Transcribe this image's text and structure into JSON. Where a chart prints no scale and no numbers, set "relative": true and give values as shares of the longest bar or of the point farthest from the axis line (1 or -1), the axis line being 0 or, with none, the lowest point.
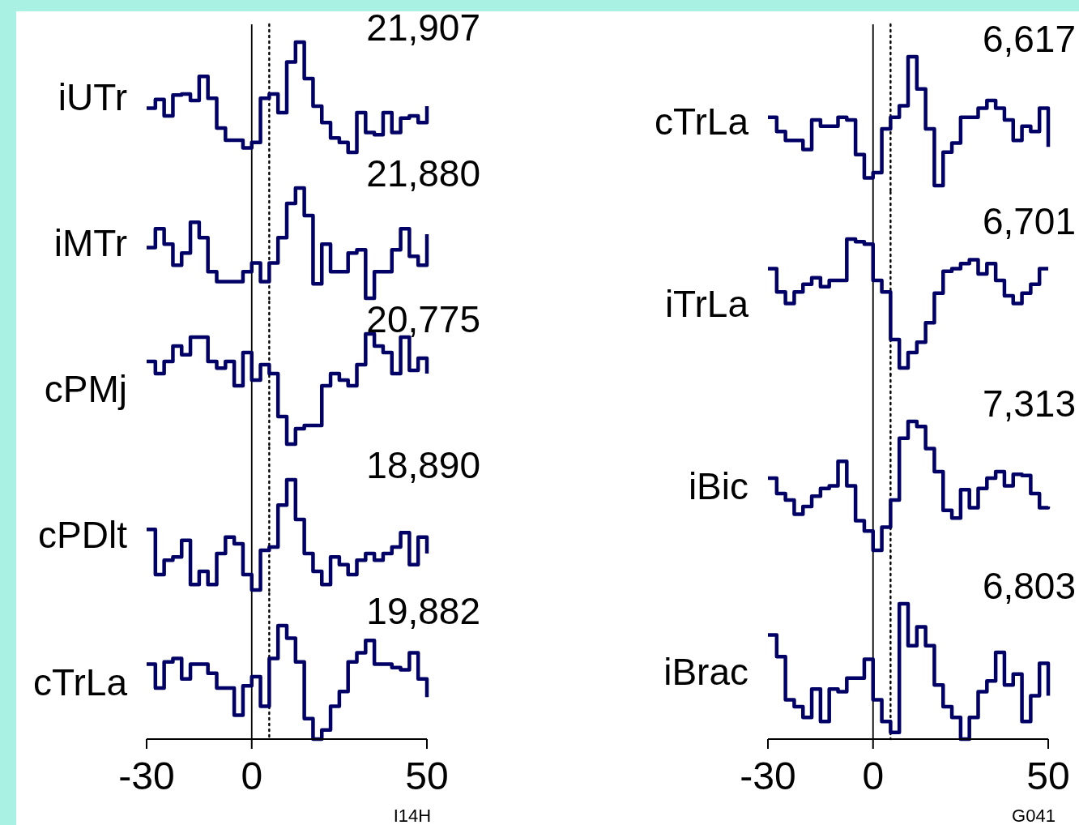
{
  "chart_data": [
    {
      "type": "step",
      "ylabel": "iUTr",
      "annotations": [
        "21,907"
      ],
      "relative": true,
      "xlim": [
        -30,
        50
      ],
      "tick_labels": false,
      "color": "#000066",
      "line_style": "solid",
      "ref_lines": [
        {
          "axis": "x",
          "value": 0,
          "color": "#000000",
          "line_style": "solid"
        },
        {
          "axis": "x",
          "value": 5,
          "color": "#000000",
          "line_style": "dotted"
        }
      ],
      "x": [
        -30,
        -27.5,
        -25,
        -22.5,
        -20,
        -17.5,
        -15,
        -12.5,
        -10,
        -7.5,
        -5,
        -2.5,
        0,
        2.5,
        5,
        7.5,
        10,
        12.5,
        15,
        17.5,
        20,
        22.5,
        25,
        27.5,
        30,
        32.5,
        35,
        37.5,
        40,
        42.5,
        45,
        47.5,
        50
      ],
      "values": [
        0.4,
        0.48,
        0.33,
        0.52,
        0.53,
        0.47,
        0.69,
        0.49,
        0.22,
        0.11,
        0.11,
        0.04,
        0.09,
        0.49,
        0.53,
        0.36,
        0.82,
        1,
        0.67,
        0.42,
        0.27,
        0.13,
        0.09,
        0,
        0.36,
        0.18,
        0.16,
        0.36,
        0.18,
        0.31,
        0.33,
        0.27,
        0.42
      ]
    },
    {
      "type": "step",
      "ylabel": "iMTr",
      "annotations": [
        "21,880"
      ],
      "relative": true,
      "xlim": [
        -30,
        50
      ],
      "tick_labels": false,
      "color": "#000066",
      "line_style": "solid",
      "ref_lines": [
        {
          "axis": "x",
          "value": 0,
          "color": "#000000",
          "line_style": "solid"
        },
        {
          "axis": "x",
          "value": 5,
          "color": "#000000",
          "line_style": "dotted"
        }
      ],
      "x": [
        -30,
        -27.5,
        -25,
        -22.5,
        -20,
        -17.5,
        -15,
        -12.5,
        -10,
        -7.5,
        -5,
        -2.5,
        0,
        2.5,
        5,
        7.5,
        10,
        12.5,
        15,
        17.5,
        20,
        22.5,
        25,
        27.5,
        30,
        32.5,
        35,
        37.5,
        40,
        42.5,
        45,
        47.5,
        50
      ],
      "values": [
        0.46,
        0.63,
        0.49,
        0.3,
        0.41,
        0.69,
        0.55,
        0.24,
        0.15,
        0.15,
        0.15,
        0.24,
        0.32,
        0.15,
        0.32,
        0.55,
        0.86,
        1,
        0.75,
        0.13,
        0.49,
        0.24,
        0.24,
        0.41,
        0.44,
        0,
        0.24,
        0.24,
        0.44,
        0.63,
        0.38,
        0.3,
        0.58
      ]
    },
    {
      "type": "step",
      "ylabel": "cPMj",
      "annotations": [
        "20,775"
      ],
      "relative": true,
      "xlim": [
        -30,
        50
      ],
      "tick_labels": false,
      "color": "#000066",
      "line_style": "solid",
      "ref_lines": [
        {
          "axis": "x",
          "value": 0,
          "color": "#000000",
          "line_style": "solid"
        },
        {
          "axis": "x",
          "value": 5,
          "color": "#000000",
          "line_style": "dotted"
        }
      ],
      "x": [
        -30,
        -27.5,
        -25,
        -22.5,
        -20,
        -17.5,
        -15,
        -12.5,
        -10,
        -7.5,
        -5,
        -2.5,
        0,
        2.5,
        5,
        7.5,
        10,
        12.5,
        15,
        17.5,
        20,
        22.5,
        25,
        27.5,
        30,
        32.5,
        35,
        37.5,
        40,
        42.5,
        45,
        47.5,
        50
      ],
      "values": [
        0.75,
        0.64,
        0.75,
        0.89,
        0.81,
        0.97,
        0.97,
        0.75,
        0.69,
        0.75,
        0.53,
        0.83,
        0.58,
        0.72,
        0.64,
        0.25,
        0,
        0.14,
        0.17,
        0.17,
        0.53,
        0.64,
        0.58,
        0.53,
        0.72,
        1,
        0.89,
        0.83,
        0.64,
        0.97,
        0.67,
        0.78,
        0.64
      ]
    },
    {
      "type": "step",
      "ylabel": "cPDlt",
      "annotations": [
        "18,890"
      ],
      "relative": true,
      "xlim": [
        -30,
        50
      ],
      "tick_labels": false,
      "color": "#000066",
      "line_style": "solid",
      "ref_lines": [
        {
          "axis": "x",
          "value": 0,
          "color": "#000000",
          "line_style": "solid"
        },
        {
          "axis": "x",
          "value": 5,
          "color": "#000000",
          "line_style": "dotted"
        }
      ],
      "x": [
        -30,
        -27.5,
        -25,
        -22.5,
        -20,
        -17.5,
        -15,
        -12.5,
        -10,
        -7.5,
        -5,
        -2.5,
        0,
        2.5,
        5,
        7.5,
        10,
        12.5,
        15,
        17.5,
        20,
        22.5,
        25,
        27.5,
        30,
        32.5,
        35,
        37.5,
        40,
        42.5,
        45,
        47.5,
        50
      ],
      "values": [
        0.55,
        0.14,
        0.27,
        0.3,
        0.45,
        0.05,
        0.17,
        0.05,
        0.33,
        0.48,
        0.42,
        0.14,
        0,
        0.36,
        0.39,
        0.77,
        1,
        0.64,
        0.33,
        0.17,
        0.05,
        0.3,
        0.23,
        0.14,
        0.27,
        0.33,
        0.27,
        0.33,
        0.39,
        0.52,
        0.23,
        0.48,
        0.33
      ]
    },
    {
      "type": "step",
      "ylabel": "cTrLa",
      "annotations": [
        "19,882",
        "I14H"
      ],
      "relative": true,
      "xlim": [
        -30,
        50
      ],
      "xticks": [
        -30,
        0,
        50
      ],
      "color": "#000066",
      "line_style": "solid",
      "ref_lines": [
        {
          "axis": "x",
          "value": 0,
          "color": "#000000",
          "line_style": "solid"
        },
        {
          "axis": "x",
          "value": 5,
          "color": "#000000",
          "line_style": "dotted"
        }
      ],
      "x": [
        -30,
        -27.5,
        -25,
        -22.5,
        -20,
        -17.5,
        -15,
        -12.5,
        -10,
        -7.5,
        -5,
        -2.5,
        0,
        2.5,
        5,
        7.5,
        10,
        12.5,
        15,
        17.5,
        20,
        22.5,
        25,
        27.5,
        30,
        32.5,
        35,
        37.5,
        40,
        42.5,
        45,
        47.5,
        50
      ],
      "values": [
        0.66,
        0.45,
        0.68,
        0.71,
        0.53,
        0.66,
        0.66,
        0.58,
        0.45,
        0.45,
        0.21,
        0.47,
        0.55,
        0.29,
        0.71,
        1,
        0.89,
        0.68,
        0.18,
        0,
        0.08,
        0.29,
        0.42,
        0.68,
        0.76,
        0.87,
        0.66,
        0.66,
        0.63,
        0.61,
        0.76,
        0.53,
        0.37
      ]
    },
    {
      "type": "step",
      "ylabel": "cTrLa",
      "annotations": [
        "6,617"
      ],
      "relative": true,
      "xlim": [
        -30,
        50
      ],
      "tick_labels": false,
      "color": "#000066",
      "line_style": "solid",
      "ref_lines": [
        {
          "axis": "x",
          "value": 0,
          "color": "#000000",
          "line_style": "solid"
        },
        {
          "axis": "x",
          "value": 5,
          "color": "#000000",
          "line_style": "dotted"
        }
      ],
      "x": [
        -30,
        -27.5,
        -25,
        -22.5,
        -20,
        -17.5,
        -15,
        -12.5,
        -10,
        -7.5,
        -5,
        -2.5,
        0,
        2.5,
        5,
        7.5,
        10,
        12.5,
        15,
        17.5,
        20,
        22.5,
        25,
        27.5,
        30,
        32.5,
        35,
        37.5,
        40,
        42.5,
        45,
        47.5,
        50
      ],
      "values": [
        0.53,
        0.42,
        0.35,
        0.35,
        0.28,
        0.51,
        0.46,
        0.46,
        0.53,
        0.51,
        0.24,
        0.06,
        0.1,
        0.44,
        0.53,
        0.62,
        1,
        0.75,
        0.44,
        0,
        0.26,
        0.33,
        0.53,
        0.53,
        0.6,
        0.66,
        0.6,
        0.51,
        0.35,
        0.46,
        0.42,
        0.6,
        0.3
      ]
    },
    {
      "type": "step",
      "ylabel": "iTrLa",
      "annotations": [
        "6,701"
      ],
      "relative": true,
      "xlim": [
        -30,
        50
      ],
      "tick_labels": false,
      "color": "#000066",
      "line_style": "solid",
      "ref_lines": [
        {
          "axis": "x",
          "value": 0,
          "color": "#000000",
          "line_style": "solid"
        },
        {
          "axis": "x",
          "value": 5,
          "color": "#000000",
          "line_style": "dotted"
        }
      ],
      "x": [
        -30,
        -27.5,
        -25,
        -22.5,
        -20,
        -17.5,
        -15,
        -12.5,
        -10,
        -7.5,
        -5,
        -2.5,
        0,
        2.5,
        5,
        7.5,
        10,
        12.5,
        15,
        17.5,
        20,
        22.5,
        25,
        27.5,
        30,
        32.5,
        35,
        37.5,
        40,
        42.5,
        45,
        47.5,
        50
      ],
      "values": [
        0.77,
        0.59,
        0.5,
        0.59,
        0.65,
        0.7,
        0.63,
        0.68,
        0.68,
        1,
        0.98,
        0.96,
        0.68,
        0.59,
        0.22,
        0,
        0.12,
        0.2,
        0.35,
        0.58,
        0.75,
        0.77,
        0.81,
        0.84,
        0.73,
        0.81,
        0.68,
        0.56,
        0.5,
        0.58,
        0.65,
        0.77,
        0.77
      ]
    },
    {
      "type": "step",
      "ylabel": "iBic",
      "annotations": [
        "7,313"
      ],
      "relative": true,
      "xlim": [
        -30,
        50
      ],
      "tick_labels": false,
      "color": "#000066",
      "line_style": "solid",
      "ref_lines": [
        {
          "axis": "x",
          "value": 0,
          "color": "#000000",
          "line_style": "solid"
        },
        {
          "axis": "x",
          "value": 5,
          "color": "#000000",
          "line_style": "dotted"
        }
      ],
      "x": [
        -30,
        -27.5,
        -25,
        -22.5,
        -20,
        -17.5,
        -15,
        -12.5,
        -10,
        -7.5,
        -5,
        -2.5,
        0,
        2.5,
        5,
        7.5,
        10,
        12.5,
        15,
        17.5,
        20,
        22.5,
        25,
        27.5,
        30,
        32.5,
        35,
        37.5,
        40,
        42.5,
        45,
        47.5,
        50
      ],
      "values": [
        0.56,
        0.44,
        0.39,
        0.28,
        0.34,
        0.42,
        0.48,
        0.5,
        0.69,
        0.5,
        0.23,
        0.15,
        0,
        0.18,
        0.39,
        0.87,
        1,
        0.96,
        0.79,
        0.61,
        0.31,
        0.25,
        0.47,
        0.33,
        0.48,
        0.56,
        0.61,
        0.5,
        0.59,
        0.58,
        0.44,
        0.33,
        0.34
      ]
    },
    {
      "type": "step",
      "ylabel": "iBrac",
      "annotations": [
        "6,803",
        "G041"
      ],
      "relative": true,
      "xlim": [
        -30,
        50
      ],
      "xticks": [
        -30,
        0,
        50
      ],
      "color": "#000066",
      "line_style": "solid",
      "ref_lines": [
        {
          "axis": "x",
          "value": 0,
          "color": "#000000",
          "line_style": "solid"
        },
        {
          "axis": "x",
          "value": 5,
          "color": "#000000",
          "line_style": "dotted"
        }
      ],
      "x": [
        -30,
        -27.5,
        -25,
        -22.5,
        -20,
        -17.5,
        -15,
        -12.5,
        -10,
        -7.5,
        -5,
        -2.5,
        0,
        2.5,
        5,
        7.5,
        10,
        12.5,
        15,
        17.5,
        20,
        22.5,
        25,
        27.5,
        30,
        32.5,
        35,
        37.5,
        40,
        42.5,
        45,
        47.5,
        50
      ],
      "values": [
        0.77,
        0.61,
        0.29,
        0.24,
        0.16,
        0.37,
        0.13,
        0.37,
        0.35,
        0.45,
        0.45,
        0.59,
        0.29,
        0.13,
        0.05,
        1,
        0.69,
        0.83,
        0.69,
        0.4,
        0.24,
        0.16,
        0,
        0.16,
        0.35,
        0.43,
        0.64,
        0.4,
        0.48,
        0.13,
        0.32,
        0.56,
        0.32
      ]
    }
  ]
}
